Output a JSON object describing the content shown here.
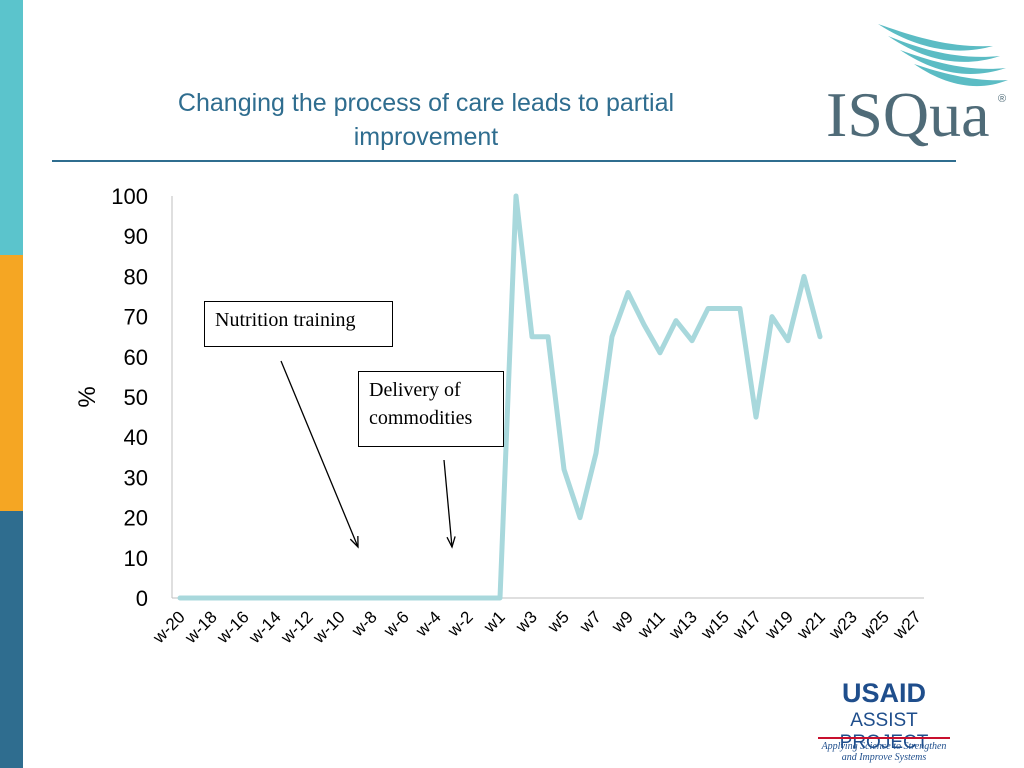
{
  "slide": {
    "title_line1": "Changing the process of care leads to partial",
    "title_line2": "improvement"
  },
  "logos": {
    "isqua": "ISQua",
    "isqua_mark": "®",
    "usaid": "USAID",
    "assist": "ASSIST PROJECT",
    "tagline_line1": "Applying Science to Strengthen",
    "tagline_line2": "and Improve Systems"
  },
  "annotations": {
    "nutrition": "Nutrition training",
    "delivery_line1": "Delivery of",
    "delivery_line2": "commodities"
  },
  "colors": {
    "line": "#a8d8dc",
    "title": "#2f6d8f",
    "axis": "#bfbfbf"
  },
  "chart_data": {
    "type": "line",
    "title": "Changing the process of care leads to partial improvement",
    "ylabel": "%",
    "xlabel": "",
    "ylim": [
      0,
      100
    ],
    "yticks": [
      0,
      10,
      20,
      30,
      40,
      50,
      60,
      70,
      80,
      90,
      100
    ],
    "categories": [
      "w-20",
      "w-19",
      "w-18",
      "w-17",
      "w-16",
      "w-15",
      "w-14",
      "w-13",
      "w-12",
      "w-11",
      "w-10",
      "w-9",
      "w-8",
      "w-7",
      "w-6",
      "w-5",
      "w-4",
      "w-3",
      "w-2",
      "w-1",
      "w1",
      "w2",
      "w3",
      "w4",
      "w5",
      "w6",
      "w7",
      "w8",
      "w9",
      "w10",
      "w11",
      "w12",
      "w13",
      "w14",
      "w15",
      "w16",
      "w17",
      "w18",
      "w19",
      "w20",
      "w21",
      "w22",
      "w23",
      "w24",
      "w25",
      "w26",
      "w27"
    ],
    "tick_labels": [
      "w-20",
      "w-18",
      "w-16",
      "w-14",
      "w-12",
      "w-10",
      "w-8",
      "w-6",
      "w-4",
      "w-2",
      "w1",
      "w3",
      "w5",
      "w7",
      "w9",
      "w11",
      "w13",
      "w15",
      "w17",
      "w19",
      "w21",
      "w23",
      "w25",
      "w27"
    ],
    "series": [
      {
        "name": "%",
        "values": [
          0,
          0,
          0,
          0,
          0,
          0,
          0,
          0,
          0,
          0,
          0,
          0,
          0,
          0,
          0,
          0,
          0,
          0,
          0,
          0,
          0,
          100,
          65,
          65,
          32,
          20,
          36,
          65,
          76,
          68,
          61,
          69,
          64,
          72,
          72,
          72,
          45,
          70,
          64,
          80,
          65,
          null,
          null,
          null,
          null,
          null,
          null
        ]
      }
    ],
    "grid": false,
    "legend": "none"
  }
}
